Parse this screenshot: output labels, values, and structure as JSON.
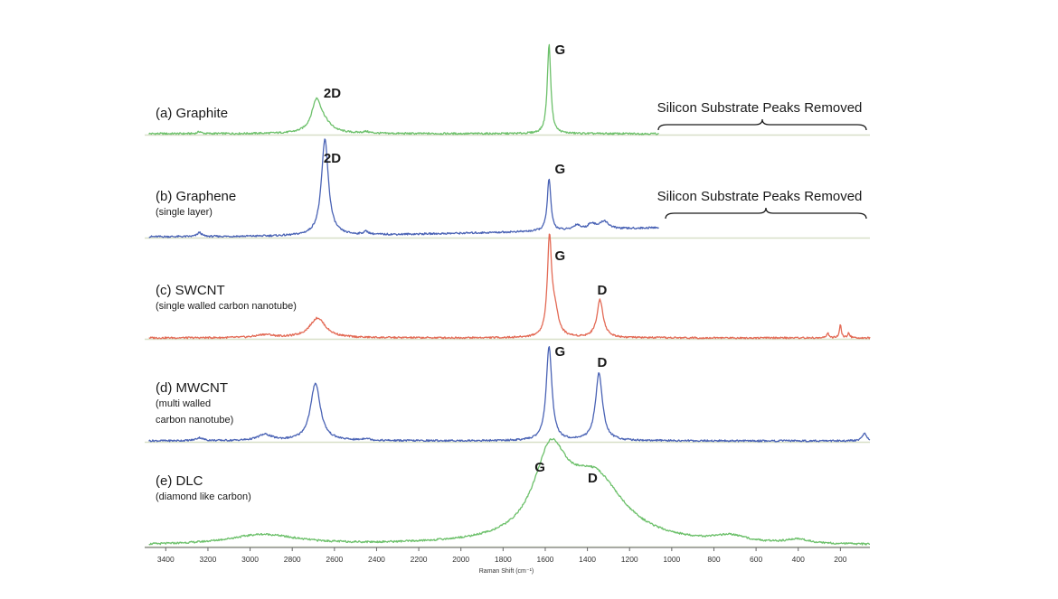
{
  "chart_data": {
    "type": "line",
    "xlabel": "Raman Shift (cm⁻¹)",
    "x_reversed": true,
    "xlim": [
      3500,
      60
    ],
    "x_ticks": [
      "3400",
      "3200",
      "3000",
      "2800",
      "2600",
      "2400",
      "2200",
      "2000",
      "1800",
      "1600",
      "1400",
      "1200",
      "1000",
      "800",
      "600",
      "400",
      "200"
    ],
    "panels": [
      {
        "id": "a",
        "label": "(a) Graphite",
        "sublabel": "",
        "color": "#6cc06a",
        "peaks": [
          {
            "name": "2D",
            "center": 2685,
            "height": 0.3,
            "width": 28
          },
          {
            "name": "2D-shoulder",
            "center": 2650,
            "height": 0.08,
            "width": 45
          },
          {
            "name": "G",
            "center": 1582,
            "height": 0.88,
            "width": 10
          },
          {
            "name": "",
            "center": 3240,
            "height": 0.02,
            "width": 10
          },
          {
            "name": "",
            "center": 2450,
            "height": 0.015,
            "width": 20
          }
        ],
        "baseline_slope": 0.0,
        "x_range": [
          3480,
          1060
        ],
        "labels": [
          {
            "text": "2D",
            "x": 2610
          },
          {
            "text": "G",
            "x": 1530
          }
        ],
        "annotation": "Silicon Substrate Peaks Removed"
      },
      {
        "id": "b",
        "label": "(b) Graphene",
        "sublabel": "(single layer)",
        "color": "#4a63b5",
        "peaks": [
          {
            "name": "2D",
            "center": 2645,
            "height": 0.95,
            "width": 20
          },
          {
            "name": "G",
            "center": 1582,
            "height": 0.52,
            "width": 10
          },
          {
            "name": "",
            "center": 3240,
            "height": 0.04,
            "width": 12
          },
          {
            "name": "",
            "center": 2450,
            "height": 0.03,
            "width": 15
          },
          {
            "name": "",
            "center": 1450,
            "height": 0.05,
            "width": 20
          },
          {
            "name": "",
            "center": 1380,
            "height": 0.06,
            "width": 20
          },
          {
            "name": "",
            "center": 1320,
            "height": 0.08,
            "width": 25
          }
        ],
        "baseline_slope": 0.09,
        "x_range": [
          3480,
          1060
        ],
        "labels": [
          {
            "text": "2D",
            "x": 2610
          },
          {
            "text": "G",
            "x": 1530
          }
        ],
        "annotation": "Silicon Substrate Peaks Removed"
      },
      {
        "id": "c",
        "label": "(c) SWCNT",
        "sublabel": "(single walled carbon nanotube)",
        "color": "#e36a55",
        "peaks": [
          {
            "name": "2D",
            "center": 2680,
            "height": 0.2,
            "width": 45
          },
          {
            "name": "G",
            "center": 1580,
            "height": 0.95,
            "width": 12
          },
          {
            "name": "G-",
            "center": 1555,
            "height": 0.25,
            "width": 20
          },
          {
            "name": "D",
            "center": 1340,
            "height": 0.38,
            "width": 18
          },
          {
            "name": "",
            "center": 2930,
            "height": 0.03,
            "width": 50
          },
          {
            "name": "",
            "center": 200,
            "height": 0.14,
            "width": 5
          },
          {
            "name": "",
            "center": 260,
            "height": 0.05,
            "width": 6
          },
          {
            "name": "",
            "center": 160,
            "height": 0.05,
            "width": 6
          }
        ],
        "baseline_slope": 0.0,
        "x_range": [
          3480,
          60
        ],
        "labels": [
          {
            "text": "G",
            "x": 1530
          },
          {
            "text": "D",
            "x": 1330
          }
        ],
        "annotation": ""
      },
      {
        "id": "d",
        "label": "(d) MWCNT",
        "sublabel": "(multi walled\ncarbon nanotube)",
        "color": "#4a63b5",
        "peaks": [
          {
            "name": "2D",
            "center": 2690,
            "height": 0.58,
            "width": 28
          },
          {
            "name": "G",
            "center": 1582,
            "height": 0.95,
            "width": 16
          },
          {
            "name": "D",
            "center": 1345,
            "height": 0.68,
            "width": 20
          },
          {
            "name": "",
            "center": 2930,
            "height": 0.06,
            "width": 40
          },
          {
            "name": "",
            "center": 3240,
            "height": 0.03,
            "width": 20
          },
          {
            "name": "",
            "center": 2450,
            "height": 0.02,
            "width": 20
          },
          {
            "name": "",
            "center": 85,
            "height": 0.08,
            "width": 12
          }
        ],
        "baseline_slope": 0.0,
        "x_range": [
          3480,
          60
        ],
        "labels": [
          {
            "text": "G",
            "x": 1530
          },
          {
            "text": "D",
            "x": 1330
          }
        ],
        "annotation": ""
      },
      {
        "id": "e",
        "label": "(e) DLC",
        "sublabel": "(diamond like carbon)",
        "color": "#6cc06a",
        "peaks": [
          {
            "name": "G",
            "center": 1575,
            "height": 0.78,
            "width": 95
          },
          {
            "name": "D",
            "center": 1365,
            "height": 0.62,
            "width": 170
          },
          {
            "name": "",
            "center": 2940,
            "height": 0.1,
            "width": 200
          },
          {
            "name": "",
            "center": 720,
            "height": 0.06,
            "width": 90
          },
          {
            "name": "",
            "center": 400,
            "height": 0.04,
            "width": 60
          }
        ],
        "baseline_slope": 0.0,
        "x_range": [
          3480,
          60
        ],
        "labels": [
          {
            "text": "G",
            "x": 1625
          },
          {
            "text": "D",
            "x": 1375
          }
        ],
        "annotation": ""
      }
    ]
  }
}
